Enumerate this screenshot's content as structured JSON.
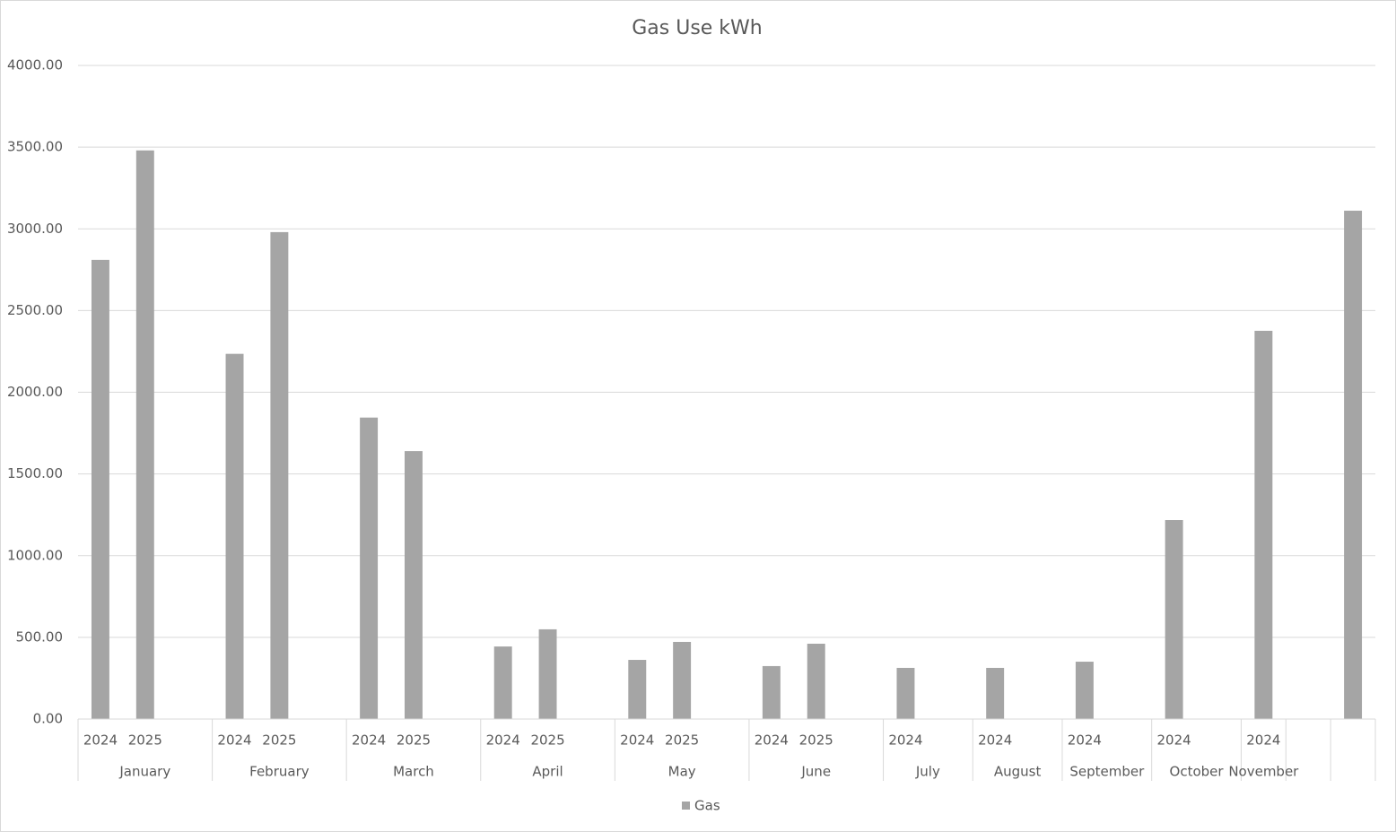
{
  "chart_data": {
    "type": "bar",
    "title": "Gas Use kWh",
    "groups": [
      {
        "name": "January",
        "categories": [
          "2024",
          "2025",
          null
        ],
        "values": [
          2810,
          3480,
          null
        ]
      },
      {
        "name": "February",
        "categories": [
          "2024",
          "2025",
          null
        ],
        "values": [
          2235,
          2980,
          null
        ]
      },
      {
        "name": "March",
        "categories": [
          "2024",
          "2025",
          null
        ],
        "values": [
          1845,
          1640,
          null
        ]
      },
      {
        "name": "April",
        "categories": [
          "2024",
          "2025",
          null
        ],
        "values": [
          444,
          549,
          null
        ]
      },
      {
        "name": "May",
        "categories": [
          "2024",
          "2025",
          null
        ],
        "values": [
          362,
          472,
          null
        ]
      },
      {
        "name": "June",
        "categories": [
          "2024",
          "2025",
          null
        ],
        "values": [
          324,
          461,
          null
        ]
      },
      {
        "name": "July",
        "categories": [
          "2024",
          null
        ],
        "values": [
          313,
          null
        ]
      },
      {
        "name": "August",
        "categories": [
          "2024",
          null
        ],
        "values": [
          313,
          null
        ]
      },
      {
        "name": "September",
        "categories": [
          "2024",
          null
        ],
        "values": [
          351,
          null
        ]
      },
      {
        "name": "October",
        "categories": [
          "2024",
          null
        ],
        "values": [
          1218,
          null
        ]
      },
      {
        "name": "November",
        "categories": [
          "2024"
        ],
        "values": [
          2376
        ]
      },
      {
        "name": null,
        "categories": [
          null
        ],
        "values": [
          null
        ]
      },
      {
        "name": null,
        "categories": [
          null
        ],
        "values": [
          3111
        ]
      }
    ],
    "series_name": "Gas",
    "color": "#a5a5a5",
    "ylim": [
      0,
      4000
    ],
    "yticks": [
      {
        "value": 0,
        "label": "0.00"
      },
      {
        "value": 500,
        "label": "500.00"
      },
      {
        "value": 1000,
        "label": "1000.00"
      },
      {
        "value": 1500,
        "label": "1500.00"
      },
      {
        "value": 2000,
        "label": "2000.00"
      },
      {
        "value": 2500,
        "label": "2500.00"
      },
      {
        "value": 3000,
        "label": "3000.00"
      },
      {
        "value": 3500,
        "label": "3500.00"
      },
      {
        "value": 4000,
        "label": "4000.00"
      }
    ],
    "grid": true,
    "legend": "bottom"
  }
}
